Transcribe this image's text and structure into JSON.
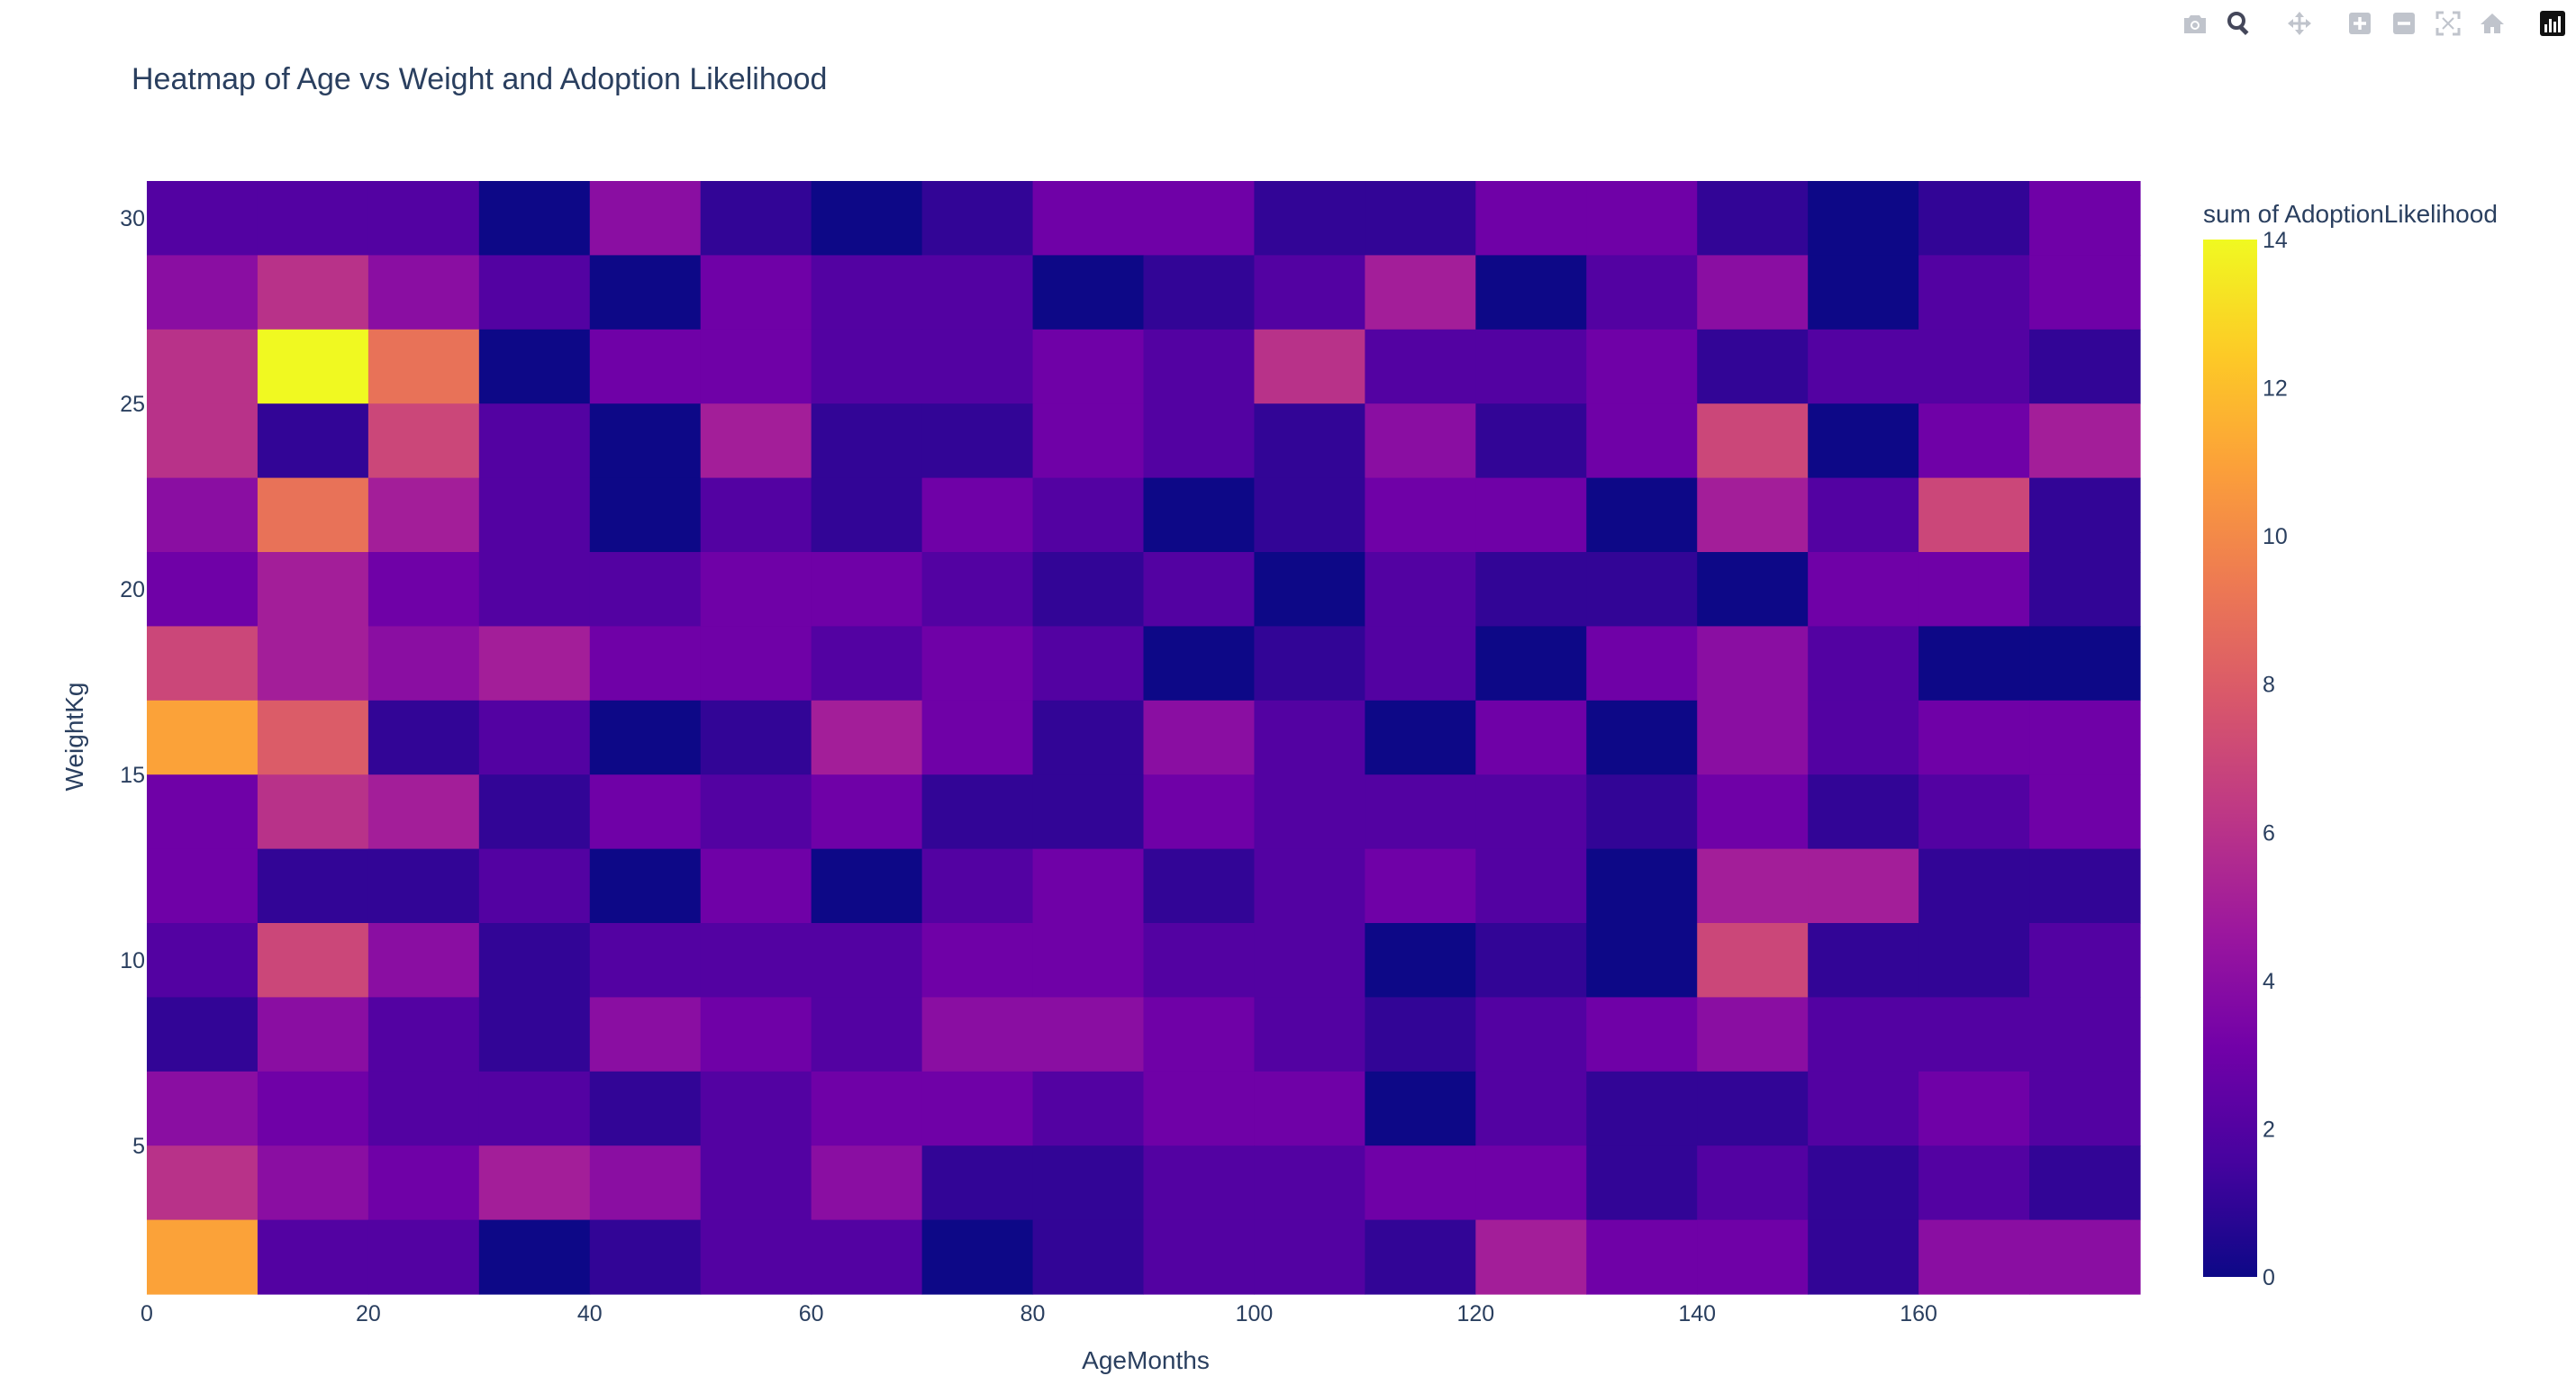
{
  "modebar": {
    "buttons": [
      {
        "name": "camera-icon",
        "label": "Download plot as a png"
      },
      {
        "name": "zoom-icon",
        "label": "Zoom",
        "active": true
      },
      {
        "name": "pan-icon",
        "label": "Pan"
      },
      {
        "name": "zoom-in-icon",
        "label": "Zoom in"
      },
      {
        "name": "zoom-out-icon",
        "label": "Zoom out"
      },
      {
        "name": "autoscale-icon",
        "label": "Autoscale"
      },
      {
        "name": "home-icon",
        "label": "Reset axes"
      },
      {
        "name": "plotly-logo-icon",
        "label": "Produced with Plotly"
      }
    ],
    "icon_color": "#c0c4cc",
    "active_color": "#44475a"
  },
  "chart_data": {
    "type": "heatmap",
    "title": "Heatmap of Age vs Weight and Adoption Likelihood",
    "xlabel": "AgeMonths",
    "ylabel": "WeightKg",
    "colorbar_title": "sum of AdoptionLikelihood",
    "x_bin_start": 0,
    "x_bin_size": 10,
    "y_bin_start": 1,
    "y_bin_size": 2,
    "xlim": [
      0,
      180
    ],
    "ylim": [
      1,
      31
    ],
    "x_ticks": [
      0,
      20,
      40,
      60,
      80,
      100,
      120,
      140,
      160
    ],
    "y_ticks": [
      5,
      10,
      15,
      20,
      25,
      30
    ],
    "colorbar_ticks": [
      0,
      2,
      4,
      6,
      8,
      10,
      12,
      14
    ],
    "zmin": 0,
    "zmax": 14,
    "colorscale": [
      [
        0.0,
        "#0d0887"
      ],
      [
        0.1111,
        "#46039f"
      ],
      [
        0.2222,
        "#7201a8"
      ],
      [
        0.3333,
        "#9c179e"
      ],
      [
        0.4444,
        "#bd3786"
      ],
      [
        0.5556,
        "#d8576b"
      ],
      [
        0.6667,
        "#ed7953"
      ],
      [
        0.7778,
        "#fb9f3a"
      ],
      [
        0.8889,
        "#fdca26"
      ],
      [
        1.0,
        "#f0f921"
      ]
    ],
    "z_rows_top_to_bottom": [
      [
        2,
        2,
        2,
        0,
        4,
        1,
        0,
        1,
        3,
        3,
        1,
        1,
        3,
        3,
        1,
        0,
        1,
        3
      ],
      [
        4,
        6,
        4,
        2,
        0,
        3,
        2,
        2,
        0,
        1,
        2,
        5,
        0,
        2,
        4,
        0,
        2,
        3
      ],
      [
        6,
        14,
        9,
        0,
        3,
        3,
        2,
        2,
        3,
        2,
        6,
        2,
        2,
        3,
        1,
        2,
        2,
        1
      ],
      [
        6,
        1,
        7,
        2,
        0,
        5,
        1,
        1,
        3,
        2,
        1,
        4,
        1,
        3,
        7,
        0,
        3,
        5
      ],
      [
        4,
        9,
        5,
        2,
        0,
        2,
        1,
        3,
        2,
        0,
        1,
        3,
        3,
        0,
        5,
        2,
        7,
        1
      ],
      [
        3,
        5,
        3,
        2,
        2,
        3,
        3,
        2,
        1,
        2,
        0,
        2,
        1,
        1,
        0,
        3,
        3,
        1
      ],
      [
        7,
        5,
        4,
        5,
        3,
        3,
        2,
        3,
        2,
        0,
        1,
        2,
        0,
        3,
        4,
        2,
        0,
        0
      ],
      [
        11,
        8,
        1,
        2,
        0,
        1,
        5,
        3,
        1,
        4,
        2,
        0,
        3,
        0,
        4,
        2,
        3,
        3
      ],
      [
        3,
        6,
        5,
        1,
        3,
        2,
        3,
        1,
        1,
        3,
        2,
        2,
        2,
        1,
        3,
        1,
        2,
        3
      ],
      [
        3,
        1,
        1,
        2,
        0,
        3,
        0,
        2,
        3,
        1,
        2,
        3,
        2,
        0,
        5,
        5,
        1,
        1
      ],
      [
        2,
        7,
        4,
        1,
        2,
        2,
        2,
        3,
        3,
        2,
        2,
        0,
        1,
        0,
        7,
        1,
        1,
        2
      ],
      [
        1,
        4,
        2,
        1,
        4,
        3,
        2,
        4,
        4,
        3,
        2,
        1,
        2,
        3,
        4,
        2,
        2,
        2
      ],
      [
        4,
        3,
        2,
        2,
        1,
        2,
        3,
        3,
        2,
        3,
        3,
        0,
        2,
        1,
        1,
        2,
        3,
        2
      ],
      [
        6,
        4,
        3,
        5,
        4,
        2,
        4,
        1,
        1,
        2,
        2,
        3,
        3,
        1,
        2,
        1,
        2,
        1
      ],
      [
        11,
        2,
        2,
        0,
        1,
        2,
        2,
        0,
        1,
        2,
        2,
        1,
        5,
        3,
        3,
        1,
        4,
        4
      ]
    ]
  }
}
